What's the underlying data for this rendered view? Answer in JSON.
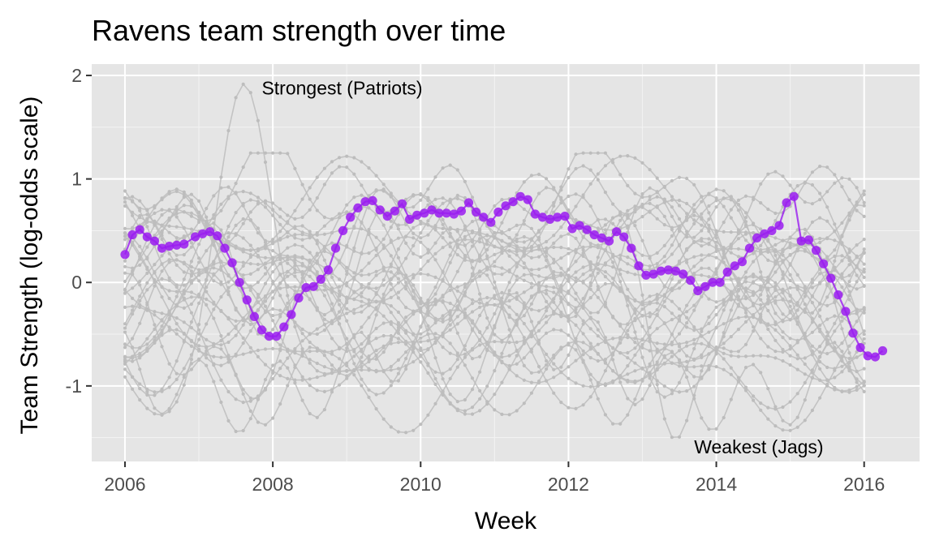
{
  "chart_data": {
    "type": "line",
    "title": "Ravens team strength over time",
    "xlabel": "Week",
    "ylabel": "Team Strength (log-odds scale)",
    "xlim": [
      2005.55,
      2016.75
    ],
    "ylim": [
      -1.73,
      2.11
    ],
    "x_ticks": [
      2006,
      2008,
      2010,
      2012,
      2014,
      2016
    ],
    "x_tick_labels": [
      "2006",
      "2008",
      "2010",
      "2012",
      "2014",
      "2016"
    ],
    "y_ticks": [
      -1,
      0,
      1,
      2
    ],
    "y_tick_labels": [
      "-1",
      "0",
      "1",
      "2"
    ],
    "grid": true,
    "background_color": "#e5e5e5",
    "highlight_color": "#9a1cf0",
    "other_color": "#bdbdbd",
    "highlight_series": {
      "name": "Ravens",
      "points": [
        [
          2006.0,
          0.27
        ],
        [
          2006.1,
          0.46
        ],
        [
          2006.2,
          0.51
        ],
        [
          2006.3,
          0.44
        ],
        [
          2006.4,
          0.4
        ],
        [
          2006.5,
          0.33
        ],
        [
          2006.6,
          0.35
        ],
        [
          2006.7,
          0.36
        ],
        [
          2006.8,
          0.37
        ],
        [
          2006.95,
          0.44
        ],
        [
          2007.05,
          0.47
        ],
        [
          2007.15,
          0.49
        ],
        [
          2007.25,
          0.45
        ],
        [
          2007.35,
          0.33
        ],
        [
          2007.45,
          0.19
        ],
        [
          2007.55,
          0.0
        ],
        [
          2007.65,
          -0.17
        ],
        [
          2007.75,
          -0.33
        ],
        [
          2007.85,
          -0.46
        ],
        [
          2007.95,
          -0.52
        ],
        [
          2008.05,
          -0.52
        ],
        [
          2008.15,
          -0.43
        ],
        [
          2008.25,
          -0.31
        ],
        [
          2008.35,
          -0.15
        ],
        [
          2008.45,
          -0.05
        ],
        [
          2008.55,
          -0.04
        ],
        [
          2008.65,
          0.03
        ],
        [
          2008.75,
          0.12
        ],
        [
          2008.85,
          0.33
        ],
        [
          2008.95,
          0.5
        ],
        [
          2009.05,
          0.63
        ],
        [
          2009.15,
          0.72
        ],
        [
          2009.25,
          0.78
        ],
        [
          2009.35,
          0.79
        ],
        [
          2009.45,
          0.7
        ],
        [
          2009.55,
          0.64
        ],
        [
          2009.65,
          0.69
        ],
        [
          2009.75,
          0.76
        ],
        [
          2009.85,
          0.61
        ],
        [
          2009.95,
          0.65
        ],
        [
          2010.05,
          0.67
        ],
        [
          2010.15,
          0.7
        ],
        [
          2010.25,
          0.67
        ],
        [
          2010.35,
          0.67
        ],
        [
          2010.45,
          0.66
        ],
        [
          2010.55,
          0.69
        ],
        [
          2010.65,
          0.77
        ],
        [
          2010.75,
          0.68
        ],
        [
          2010.85,
          0.63
        ],
        [
          2010.95,
          0.58
        ],
        [
          2011.05,
          0.68
        ],
        [
          2011.15,
          0.74
        ],
        [
          2011.25,
          0.78
        ],
        [
          2011.35,
          0.83
        ],
        [
          2011.45,
          0.8
        ],
        [
          2011.55,
          0.66
        ],
        [
          2011.65,
          0.63
        ],
        [
          2011.75,
          0.61
        ],
        [
          2011.85,
          0.63
        ],
        [
          2011.95,
          0.64
        ],
        [
          2012.05,
          0.52
        ],
        [
          2012.15,
          0.55
        ],
        [
          2012.25,
          0.51
        ],
        [
          2012.35,
          0.46
        ],
        [
          2012.45,
          0.43
        ],
        [
          2012.55,
          0.4
        ],
        [
          2012.65,
          0.49
        ],
        [
          2012.75,
          0.44
        ],
        [
          2012.85,
          0.33
        ],
        [
          2012.95,
          0.16
        ],
        [
          2013.05,
          0.07
        ],
        [
          2013.15,
          0.08
        ],
        [
          2013.25,
          0.11
        ],
        [
          2013.35,
          0.12
        ],
        [
          2013.45,
          0.11
        ],
        [
          2013.55,
          0.08
        ],
        [
          2013.65,
          0.02
        ],
        [
          2013.75,
          -0.08
        ],
        [
          2013.85,
          -0.04
        ],
        [
          2013.95,
          0.0
        ],
        [
          2014.05,
          0.0
        ],
        [
          2014.15,
          0.1
        ],
        [
          2014.25,
          0.16
        ],
        [
          2014.35,
          0.2
        ],
        [
          2014.45,
          0.33
        ],
        [
          2014.55,
          0.43
        ],
        [
          2014.65,
          0.47
        ],
        [
          2014.75,
          0.5
        ],
        [
          2014.85,
          0.55
        ],
        [
          2014.95,
          0.77
        ],
        [
          2015.05,
          0.83
        ],
        [
          2015.15,
          0.4
        ],
        [
          2015.25,
          0.41
        ],
        [
          2015.35,
          0.31
        ],
        [
          2015.45,
          0.18
        ],
        [
          2015.55,
          0.04
        ],
        [
          2015.65,
          -0.12
        ],
        [
          2015.75,
          -0.28
        ],
        [
          2015.85,
          -0.49
        ],
        [
          2015.95,
          -0.63
        ],
        [
          2016.05,
          -0.71
        ],
        [
          2016.15,
          -0.72
        ],
        [
          2016.25,
          -0.66
        ]
      ]
    },
    "annotations": [
      {
        "text": "Strongest (Patriots)",
        "x": 2007.85,
        "y": 1.88
      },
      {
        "text": "Weakest (Jags)",
        "x": 2013.7,
        "y": -1.59
      }
    ]
  }
}
